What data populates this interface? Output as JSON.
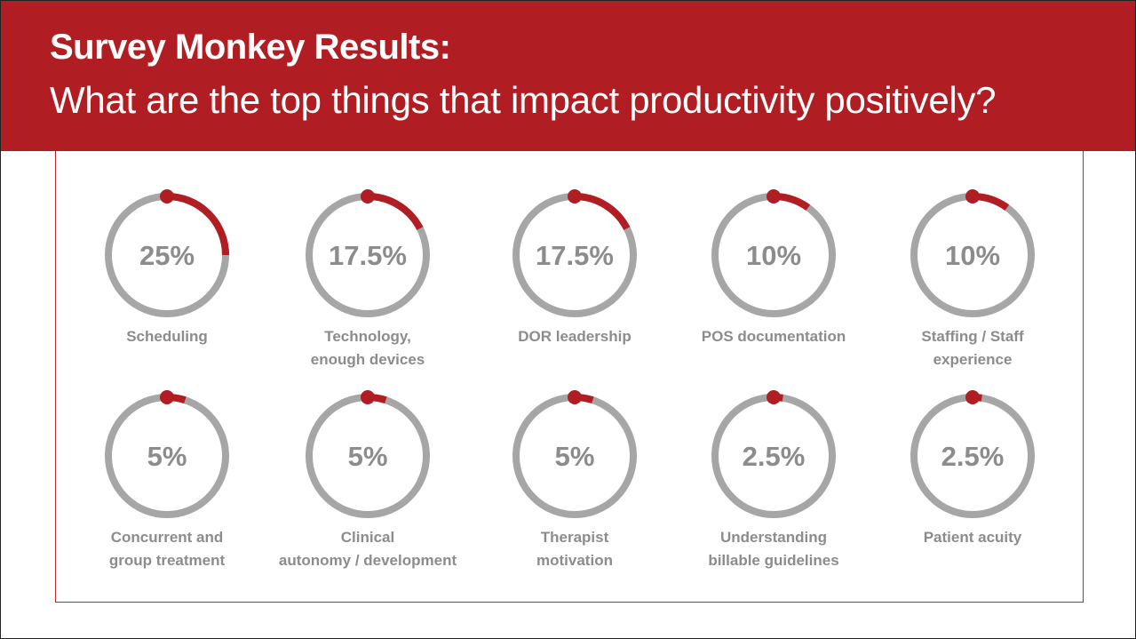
{
  "header": {
    "title": "Survey Monkey Results:",
    "subtitle": "What are the top things that impact productivity positively?"
  },
  "colors": {
    "brand_red": "#b01e23",
    "ring_gray": "#a6a6a6",
    "text_gray": "#8c8c8c"
  },
  "chart_data": {
    "type": "pie",
    "title": "Survey Monkey Results:",
    "subtitle": "What are the top things that impact productivity positively?",
    "items": [
      {
        "label": [
          "Scheduling"
        ],
        "value": 25,
        "display": "25%"
      },
      {
        "label": [
          "Technology,",
          "enough devices"
        ],
        "value": 17.5,
        "display": "17.5%"
      },
      {
        "label": [
          "DOR leadership"
        ],
        "value": 17.5,
        "display": "17.5%"
      },
      {
        "label": [
          "POS documentation"
        ],
        "value": 10,
        "display": "10%"
      },
      {
        "label": [
          "Staffing / Staff",
          "experience"
        ],
        "value": 10,
        "display": "10%"
      },
      {
        "label": [
          "Concurrent and",
          "group treatment"
        ],
        "value": 5,
        "display": "5%"
      },
      {
        "label": [
          "Clinical",
          "autonomy / development"
        ],
        "value": 5,
        "display": "5%"
      },
      {
        "label": [
          "Therapist",
          "motivation"
        ],
        "value": 5,
        "display": "5%"
      },
      {
        "label": [
          "Understanding",
          "billable guidelines"
        ],
        "value": 2.5,
        "display": "2.5%"
      },
      {
        "label": [
          "Patient acuity"
        ],
        "value": 2.5,
        "display": "2.5%"
      }
    ]
  }
}
